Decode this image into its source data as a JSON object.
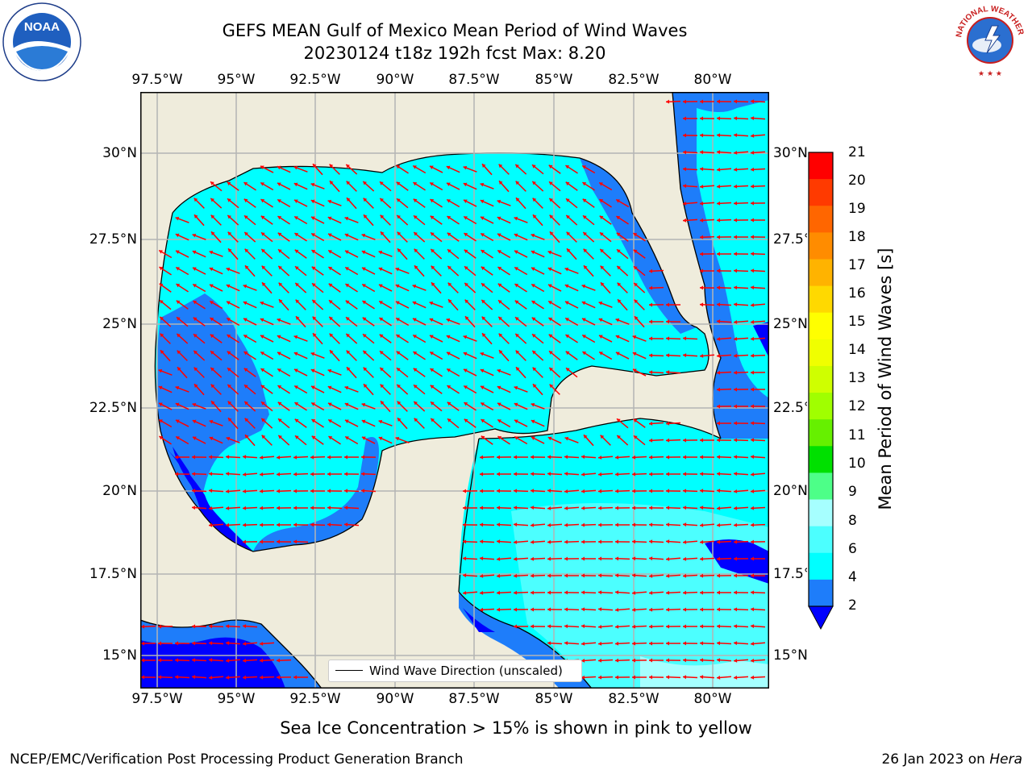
{
  "header": {
    "title_line1": "GEFS MEAN Gulf of Mexico Mean Period of Wind Waves",
    "title_line2": "20230124 t18z 192h fcst   Max: 8.20"
  },
  "map": {
    "lon_labels": [
      "97.5°W",
      "95°W",
      "92.5°W",
      "90°W",
      "87.5°W",
      "85°W",
      "82.5°W",
      "80°W"
    ],
    "lat_labels_left": [
      "30°N",
      "27.5°N",
      "25°N",
      "22.5°N",
      "20°N",
      "17.5°N",
      "15°N"
    ],
    "lat_labels_right": [
      "30°N",
      "27.5°N",
      "25°N",
      "22.5°N",
      "20°N",
      "17.5°N",
      "15°N"
    ],
    "colors": {
      "land": "#efecdc",
      "ocean_low": "#0000ff",
      "ocean_mid": "#1e7dfa",
      "ocean_high": "#00ffff",
      "ocean_top": "#4cffff",
      "vector": "#ff0000",
      "grid": "#b4b4b4"
    },
    "vector_direction": "arrows point toward the west / north-west"
  },
  "legend": {
    "label": "Wind Wave Direction (unscaled)"
  },
  "colorbar": {
    "ticks": [
      "21",
      "20",
      "19",
      "18",
      "17",
      "16",
      "15",
      "14",
      "13",
      "12",
      "11",
      "10",
      "9",
      "8",
      "6",
      "4",
      "2"
    ],
    "colors": [
      "#ff0000",
      "#ff3a00",
      "#ff6600",
      "#ff8c00",
      "#ffb300",
      "#ffd900",
      "#ffff00",
      "#f0ff00",
      "#cfff00",
      "#a0ff00",
      "#66f000",
      "#00e000",
      "#4dff88",
      "#a6ffff",
      "#4cffff",
      "#00ffff",
      "#1e7dfa",
      "#0000ff"
    ],
    "label": "Mean Period of Wind Waves [s]"
  },
  "caption": "Sea Ice Concentration > 15% is shown in pink to yellow",
  "footer": {
    "left": "NCEP/EMC/Verification Post Processing Product Generation Branch",
    "right_date": "26 Jan 2023 on ",
    "right_host": "Hera"
  },
  "logos": {
    "left": "NOAA",
    "right": "NATIONAL WEATHER SERVICE"
  }
}
